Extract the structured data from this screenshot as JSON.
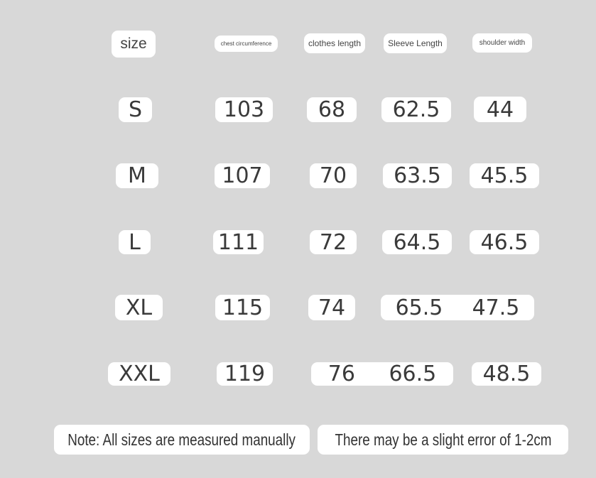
{
  "headers": {
    "size": "size",
    "chest": "chest circumference",
    "length": "clothes length",
    "sleeve": "Sleeve Length",
    "shoulder": "shoulder width"
  },
  "rows": [
    {
      "size": "S",
      "chest": "103",
      "length": "68",
      "sleeve": "62.5",
      "shoulder": "44"
    },
    {
      "size": "M",
      "chest": "107",
      "length": "70",
      "sleeve": "63.5",
      "shoulder": "45.5"
    },
    {
      "size": "L",
      "chest": "111",
      "length": "72",
      "sleeve": "64.5",
      "shoulder": "46.5"
    },
    {
      "size": "XL",
      "chest": "115",
      "length": "74",
      "sleeve": "65.5",
      "shoulder": "47.5"
    },
    {
      "size": "XXL",
      "chest": "119",
      "length": "76",
      "sleeve": "66.5",
      "shoulder": "48.5"
    }
  ],
  "notes": {
    "left": "Note: All sizes are measured manually",
    "right": "There may be a slight error of 1-2cm"
  },
  "colors": {
    "background": "#d8d8d8",
    "pill": "#ffffff"
  }
}
